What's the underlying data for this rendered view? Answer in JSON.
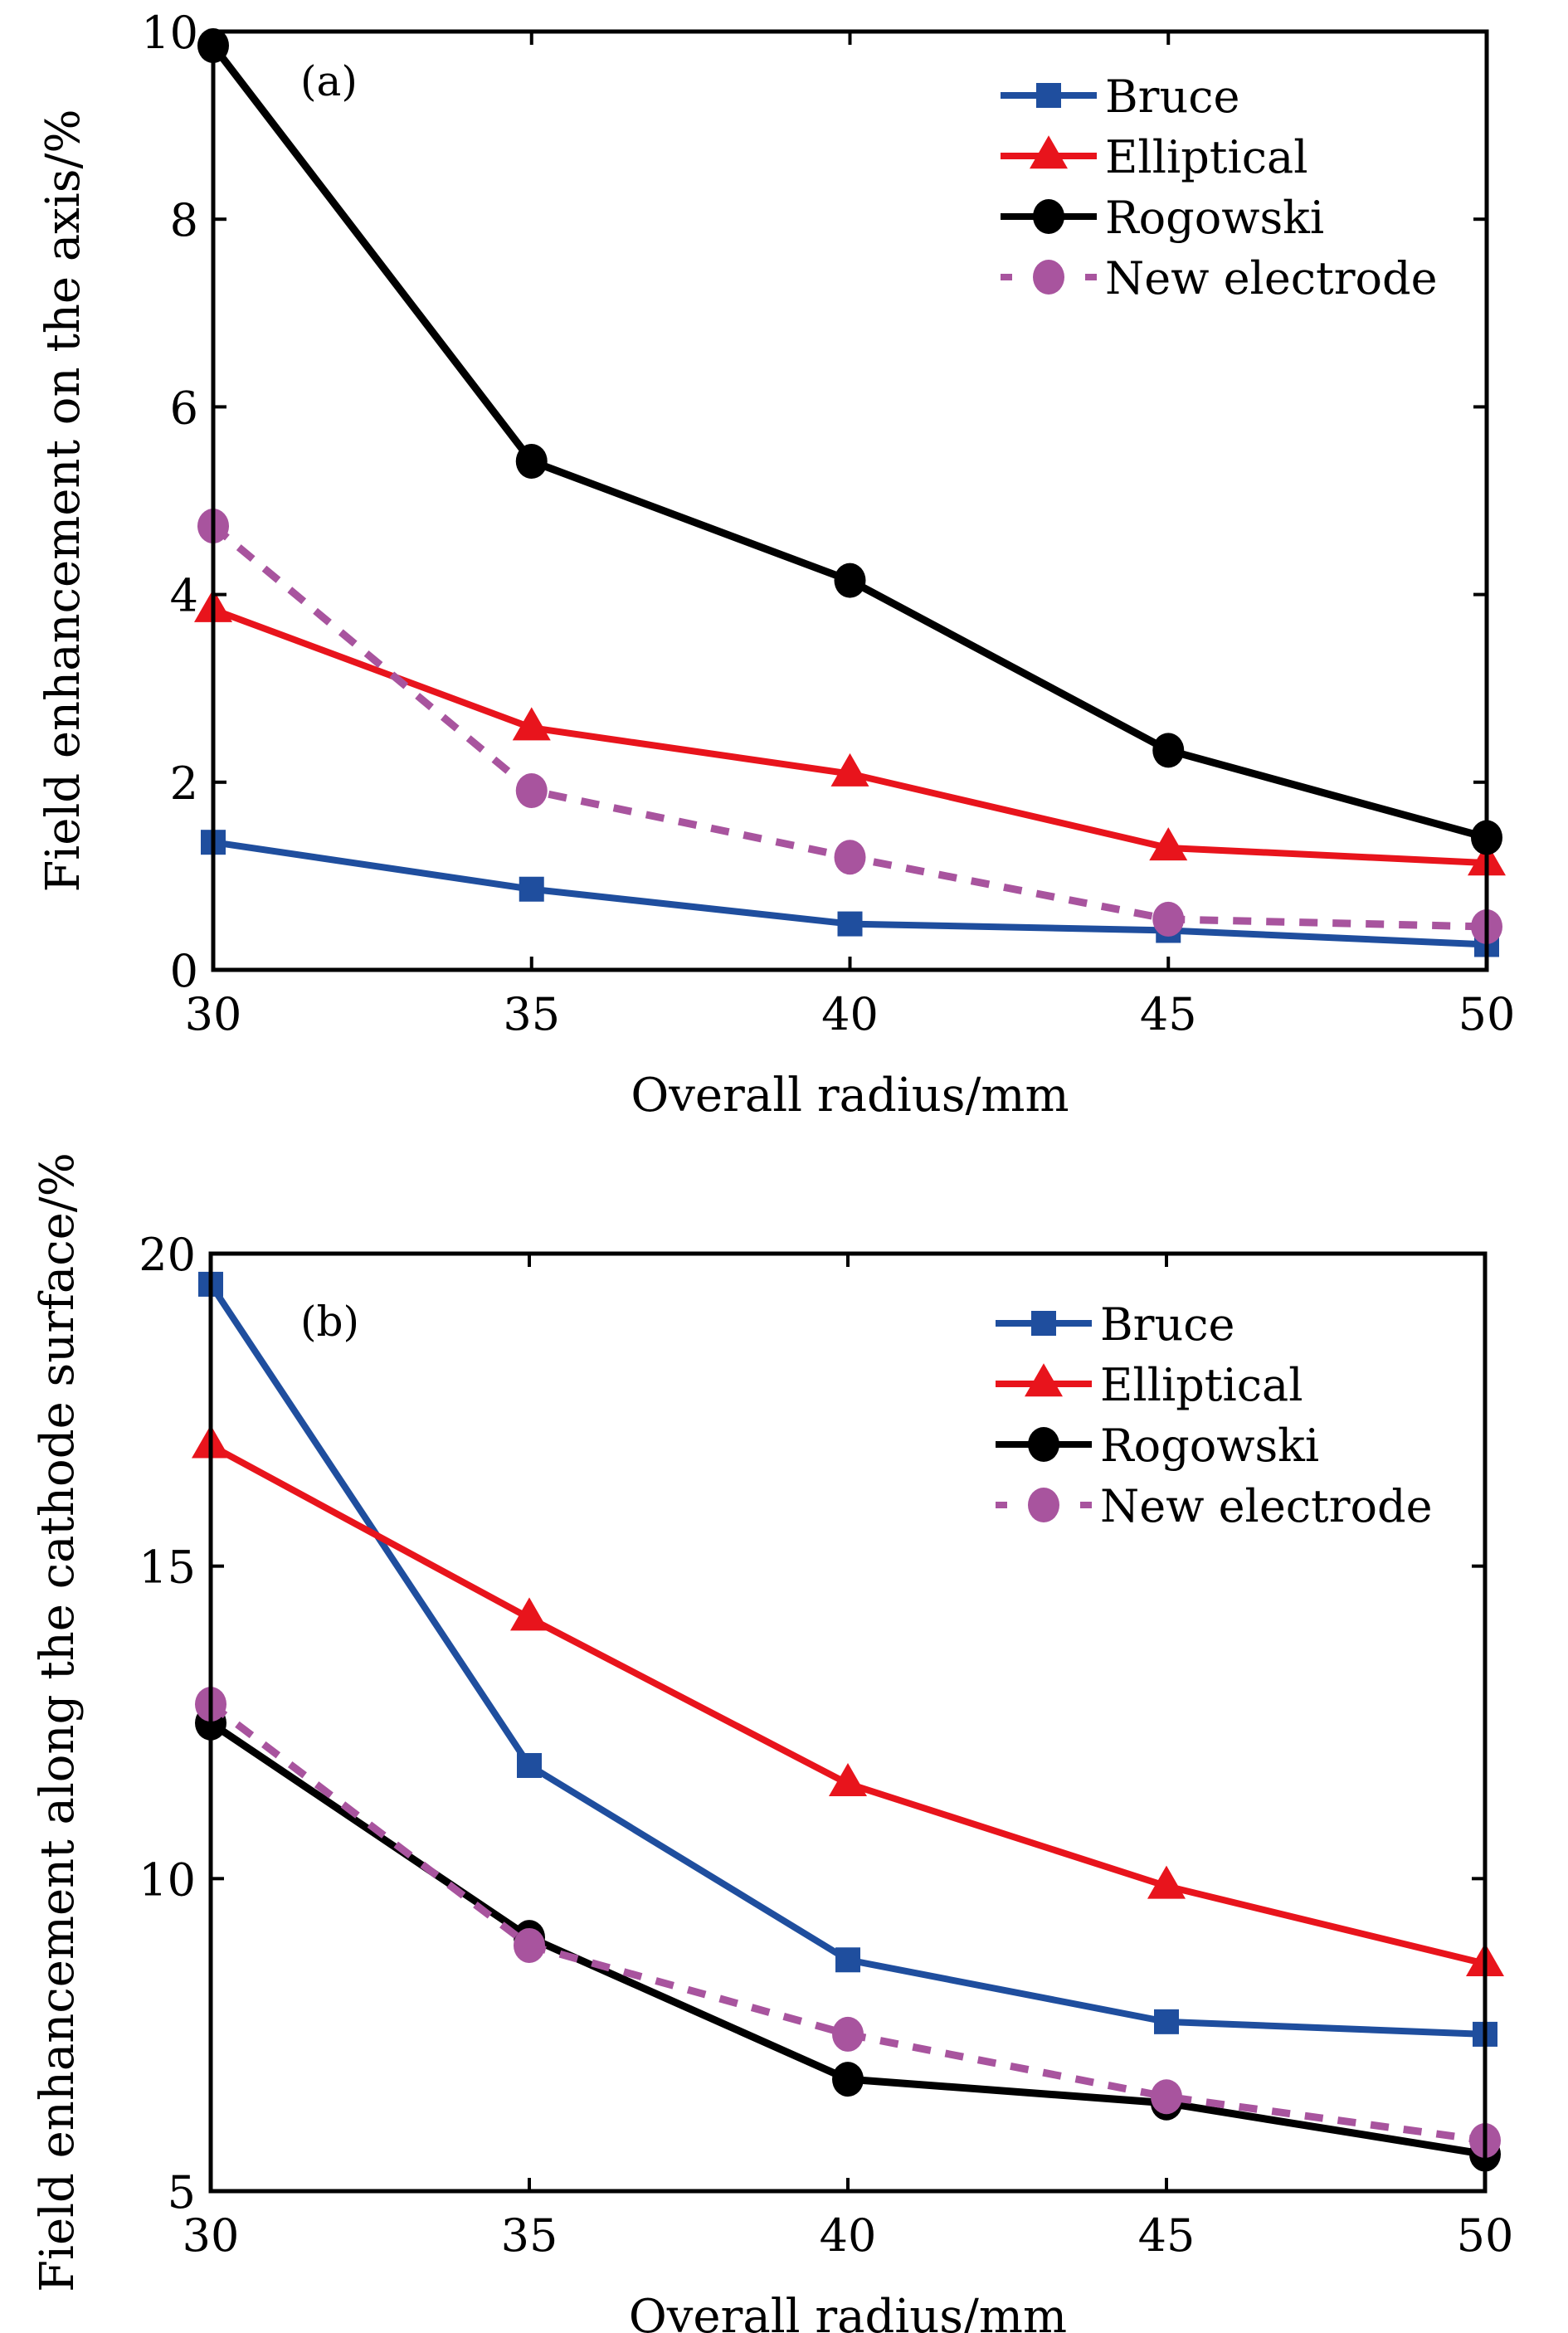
{
  "chart_data": [
    {
      "type": "line",
      "panel_label": "(a)",
      "xlabel": "Overall radius/mm",
      "ylabel": "Field enhancement on the axis/%",
      "x": [
        30,
        35,
        40,
        45,
        50
      ],
      "xlim": [
        30,
        50
      ],
      "ylim": [
        0,
        10
      ],
      "xticks": [
        30,
        35,
        40,
        45,
        50
      ],
      "yticks": [
        0,
        2,
        4,
        6,
        8,
        10
      ],
      "grid": false,
      "legend_position": "top-right",
      "series": [
        {
          "name": "Bruce",
          "color": "#1F4E9E",
          "marker": "square",
          "dash": false,
          "values": [
            1.36,
            0.86,
            0.49,
            0.42,
            0.27
          ]
        },
        {
          "name": "Elliptical",
          "color": "#E8141C",
          "marker": "triangle",
          "dash": false,
          "values": [
            3.84,
            2.58,
            2.09,
            1.3,
            1.14
          ]
        },
        {
          "name": "Rogowski",
          "color": "#000000",
          "marker": "circle",
          "dash": false,
          "values": [
            9.85,
            5.42,
            4.15,
            2.34,
            1.41
          ]
        },
        {
          "name": "New electrode",
          "color": "#A8549E",
          "marker": "circle",
          "dash": true,
          "values": [
            4.73,
            1.91,
            1.2,
            0.54,
            0.46
          ]
        }
      ]
    },
    {
      "type": "line",
      "panel_label": "(b)",
      "xlabel": "Overall radius/mm",
      "ylabel": "Field enhancement along the cathode surface/%",
      "x": [
        30,
        35,
        40,
        45,
        50
      ],
      "xlim": [
        30,
        50
      ],
      "ylim": [
        5,
        20
      ],
      "xticks": [
        30,
        35,
        40,
        45,
        50
      ],
      "yticks": [
        5,
        10,
        15,
        20
      ],
      "grid": false,
      "legend_position": "top-right",
      "series": [
        {
          "name": "Bruce",
          "color": "#1F4E9E",
          "marker": "square",
          "dash": false,
          "values": [
            19.51,
            11.81,
            8.7,
            7.71,
            7.51
          ]
        },
        {
          "name": "Elliptical",
          "color": "#E8141C",
          "marker": "triangle",
          "dash": false,
          "values": [
            16.93,
            14.17,
            11.52,
            9.88,
            8.64
          ]
        },
        {
          "name": "Rogowski",
          "color": "#000000",
          "marker": "circle",
          "dash": false,
          "values": [
            12.49,
            9.06,
            6.79,
            6.41,
            5.59
          ]
        },
        {
          "name": "New electrode",
          "color": "#A8549E",
          "marker": "circle",
          "dash": true,
          "values": [
            12.79,
            8.93,
            7.51,
            6.51,
            5.81
          ]
        }
      ]
    }
  ]
}
